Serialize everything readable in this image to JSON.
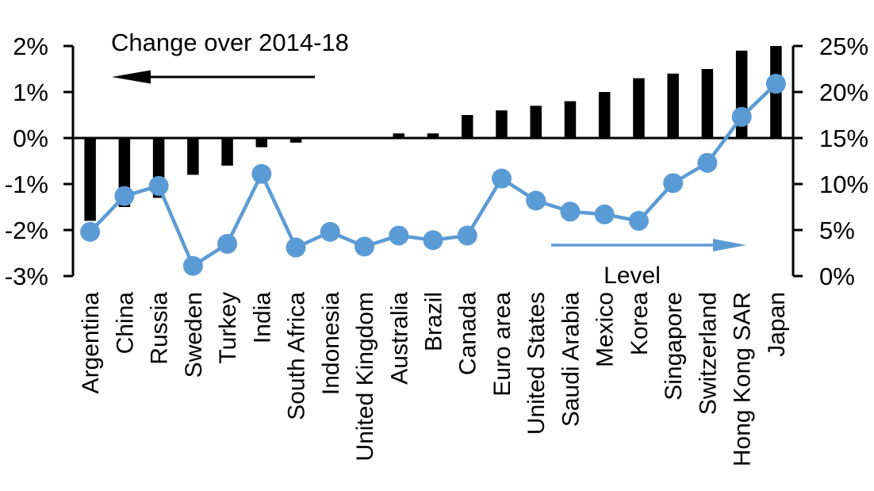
{
  "chart_data": {
    "type": "combo-bar-line",
    "title": "",
    "categories": [
      "Argentina",
      "China",
      "Russia",
      "Sweden",
      "Turkey",
      "India",
      "South Africa",
      "Indonesia",
      "United Kingdom",
      "Australia",
      "Brazil",
      "Canada",
      "Euro area",
      "United States",
      "Saudi Arabia",
      "Mexico",
      "Korea",
      "Singapore",
      "Switzerland",
      "Hong Kong SAR",
      "Japan"
    ],
    "series": [
      {
        "name": "Change over 2014-18",
        "type": "bar",
        "axis": "left",
        "color": "#000000",
        "values": [
          -1.8,
          -1.5,
          -1.3,
          -0.8,
          -0.6,
          -0.2,
          -0.1,
          0.0,
          0.0,
          0.1,
          0.1,
          0.5,
          0.6,
          0.7,
          0.8,
          1.0,
          1.3,
          1.4,
          1.5,
          1.9,
          2.0
        ]
      },
      {
        "name": "Level",
        "type": "line",
        "axis": "right",
        "color": "#5B9BD5",
        "values": [
          4.8,
          8.7,
          9.8,
          1.1,
          3.5,
          11.1,
          3.1,
          4.8,
          3.2,
          4.4,
          3.9,
          4.4,
          10.6,
          8.2,
          7.0,
          6.7,
          6.0,
          10.1,
          12.3,
          17.3,
          20.9
        ]
      }
    ],
    "left_axis": {
      "min": -3,
      "max": 2,
      "tick_step": 1,
      "tick_labels": [
        "2%",
        "1%",
        "0%",
        "-1%",
        "-2%",
        "-3%"
      ]
    },
    "right_axis": {
      "min": 0,
      "max": 25,
      "tick_step": 5,
      "tick_labels": [
        "25%",
        "20%",
        "15%",
        "10%",
        "5%",
        "0%"
      ]
    },
    "annotations": {
      "bar_series_label": "Change over 2014-18",
      "bar_arrow_direction": "left",
      "line_series_label": "Level",
      "line_arrow_direction": "right"
    },
    "grid": false,
    "legend_position": "in-plot-annotations"
  },
  "colors": {
    "bar": "#000000",
    "line": "#5B9BD5",
    "text": "#000000",
    "background": "#FFFFFF"
  }
}
